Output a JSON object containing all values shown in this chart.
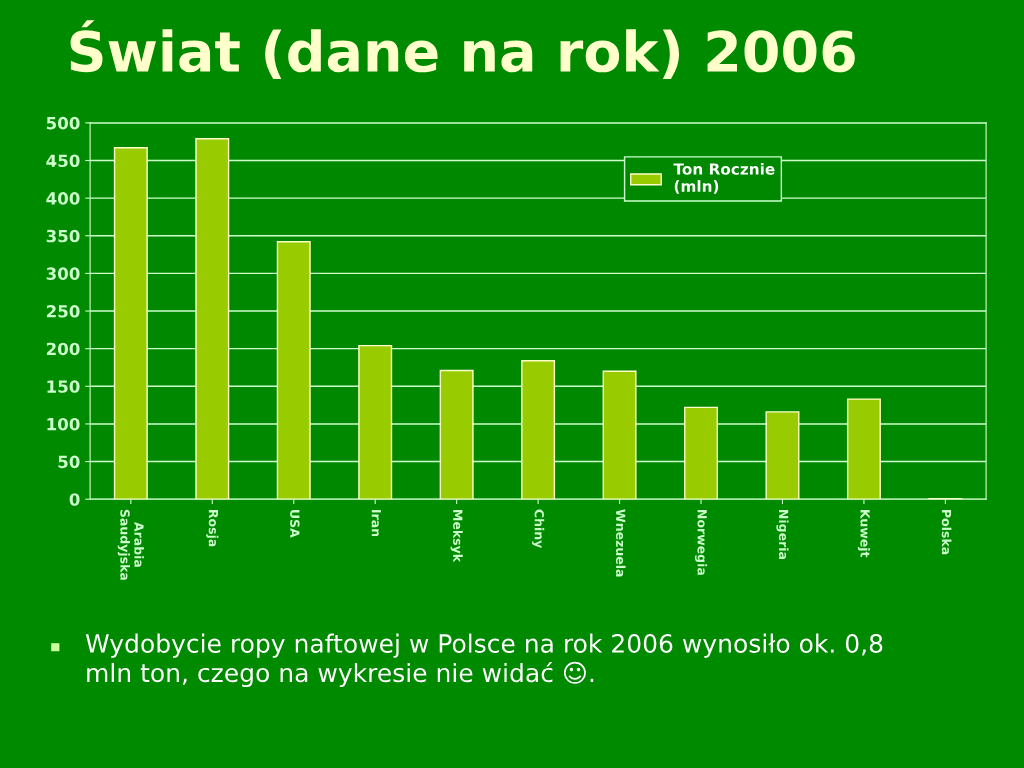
{
  "chart_data": {
    "type": "bar",
    "title": "Świat (dane na rok) 2006",
    "categories": [
      "Arabia\nSaudyjska",
      "Rosja",
      "USA",
      "Iran",
      "Meksyk",
      "Chiny",
      "Wnezuela",
      "Norwegia",
      "Nigeria",
      "Kuwejt",
      "Polska"
    ],
    "series": [
      {
        "name": "Ton Rocznie\n(mln)",
        "color": "#99cc00",
        "values": [
          467,
          479,
          342,
          204,
          171,
          184,
          170,
          122,
          116,
          133,
          0.8
        ]
      }
    ],
    "ylim": [
      0,
      500
    ],
    "yticks": [
      0,
      50,
      100,
      150,
      200,
      250,
      300,
      350,
      400,
      450,
      500
    ],
    "grid": "y",
    "legend": "top right",
    "annotations": [
      "Wydobycie ropy naftowej w Polsce na rok 2006 wynosiło ok. 0,8\nmln ton, czego na wykresie nie widać ☺."
    ]
  }
}
